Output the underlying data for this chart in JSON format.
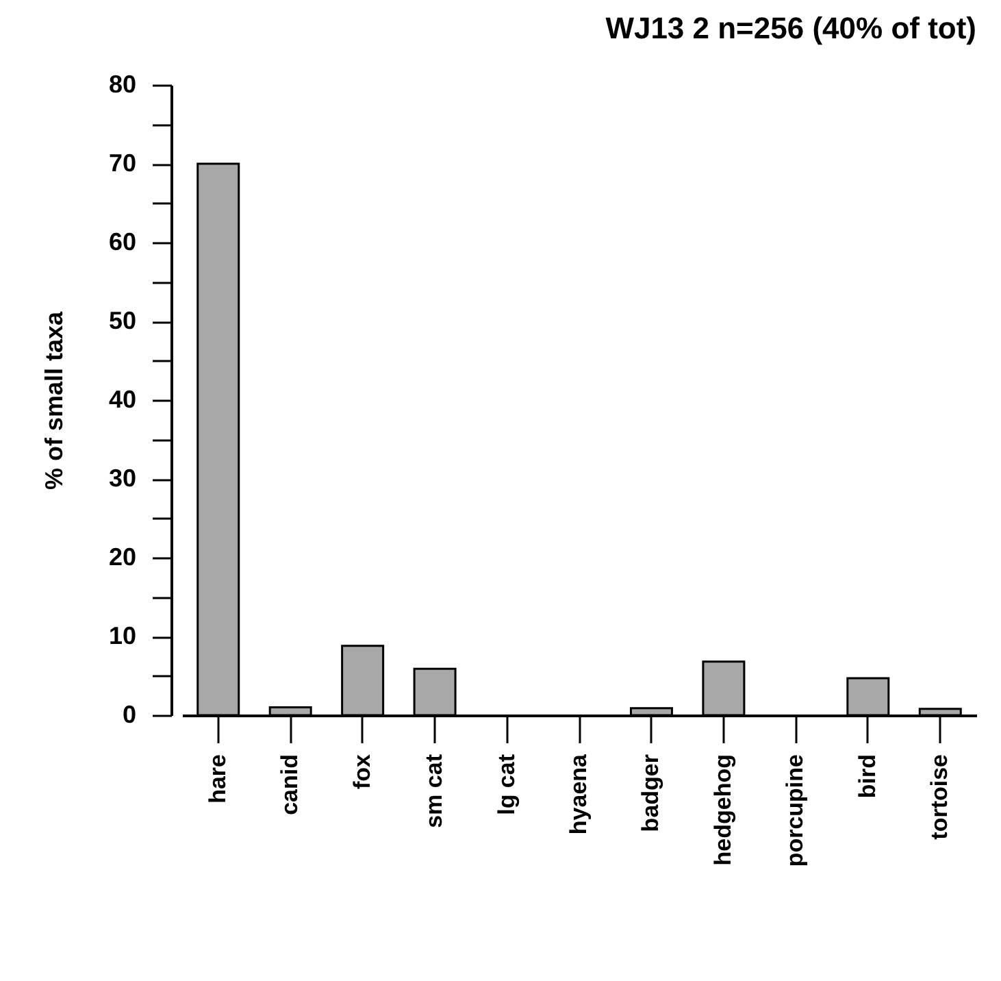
{
  "chart_data": {
    "type": "bar",
    "title": "WJ13 2 n=256 (40% of tot)",
    "ylabel": "% of small taxa",
    "categories": [
      "hare",
      "canid",
      "fox",
      "sm cat",
      "lg cat",
      "hyaena",
      "badger",
      "hedgehog",
      "porcupine",
      "bird",
      "tortoise"
    ],
    "values": [
      70,
      1,
      8.8,
      5.9,
      0,
      0,
      0.9,
      6.8,
      0,
      4.7,
      0.8
    ],
    "color": "#a8a8a8",
    "ylim": [
      0,
      80
    ],
    "yticks": [
      0,
      {
        "value": 5,
        "label": null
      },
      10,
      {
        "value": 15,
        "label": null
      },
      20,
      {
        "value": 25,
        "label": null
      },
      30,
      {
        "value": 35,
        "label": null
      },
      40,
      {
        "value": 45,
        "label": null
      },
      50,
      {
        "value": 55,
        "label": null
      },
      60,
      {
        "value": 65,
        "label": null
      },
      70,
      {
        "value": 75,
        "label": null
      },
      80
    ],
    "grid": false
  }
}
